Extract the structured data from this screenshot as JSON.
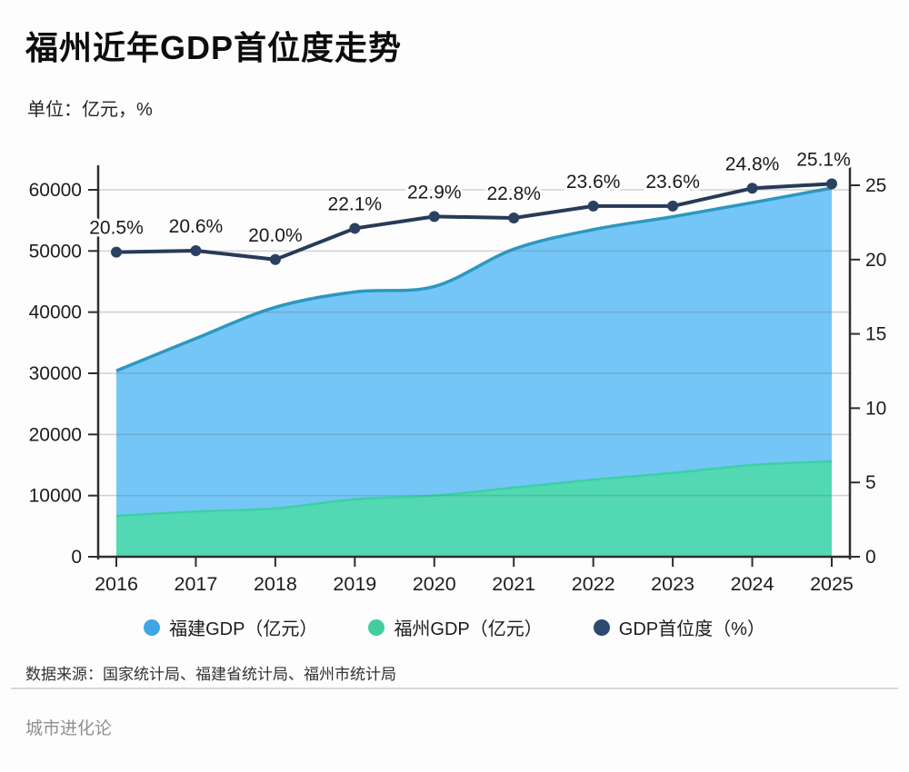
{
  "page": {
    "title": "福州近年GDP首位度走势",
    "subtitle": "单位：亿元，%",
    "source": "数据来源：国家统计局、福建省统计局、福州市统计局",
    "brand": "城市进化论"
  },
  "legend": {
    "items": [
      {
        "label": "福建GDP（亿元）",
        "color": "#41a5e6"
      },
      {
        "label": "福州GDP（亿元）",
        "color": "#43cd9e"
      },
      {
        "label": "GDP首位度（%）",
        "color": "#2c4a70"
      }
    ]
  },
  "colors": {
    "axis": "#2e2e2e",
    "grid": "#d2d4d6",
    "tick_text": "#1d1d1d",
    "label_text": "#1a1a1a"
  },
  "chart_data": {
    "type": "area",
    "title": "福州近年GDP首位度走势",
    "unit_note": "单位：亿元，%",
    "categories": [
      "2016",
      "2017",
      "2018",
      "2019",
      "2020",
      "2021",
      "2022",
      "2023",
      "2024",
      "2025"
    ],
    "series": [
      {
        "name": "福建GDP（亿元）",
        "type": "area",
        "y_axis": "left",
        "fill": "#74c6f6",
        "edge": "#2b98c0",
        "values": [
          30400,
          35700,
          40800,
          43300,
          44200,
          50300,
          53500,
          55600,
          57900,
          60300
        ]
      },
      {
        "name": "福州GDP（亿元）",
        "type": "area",
        "y_axis": "left",
        "fill": "#52d8b2",
        "edge": "#3ecfa6",
        "values": [
          6700,
          7400,
          7900,
          9400,
          10000,
          11300,
          12600,
          13700,
          15000,
          15600
        ]
      },
      {
        "name": "GDP首位度（%）",
        "type": "line",
        "y_axis": "right",
        "color": "#283a58",
        "point_color": "#2b4162",
        "values": [
          20.5,
          20.6,
          20.0,
          22.1,
          22.9,
          22.8,
          23.6,
          23.6,
          24.8,
          25.1
        ],
        "point_labels": [
          "20.5%",
          "20.6%",
          "20.0%",
          "22.1%",
          "22.9%",
          "22.8%",
          "23.6%",
          "23.6%",
          "24.8%",
          "25.1%"
        ]
      }
    ],
    "left_axis": {
      "min": 0,
      "max": 60000,
      "tick_step": 10000,
      "tick_labels": [
        "0",
        "10000",
        "20000",
        "30000",
        "40000",
        "50000",
        "60000"
      ]
    },
    "right_axis": {
      "min": 0,
      "max": 25,
      "tick_step": 5,
      "tick_labels": [
        "0",
        "5",
        "10",
        "15",
        "20",
        "25"
      ]
    },
    "grid": true,
    "smooth_areas": true,
    "legend_position": "bottom"
  }
}
